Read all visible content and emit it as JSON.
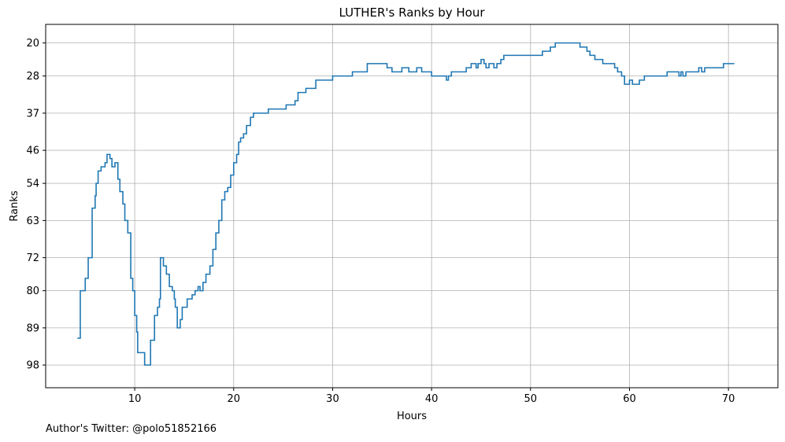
{
  "chart_data": {
    "type": "line",
    "title": "LUTHER's Ranks by Hour",
    "xlabel": "Hours",
    "ylabel": "Ranks",
    "xlim": [
      1,
      75
    ],
    "ylim": [
      103.5,
      15.5
    ],
    "y_inverted": true,
    "x_ticks": [
      10,
      20,
      30,
      40,
      50,
      60,
      70
    ],
    "y_ticks": [
      20,
      28,
      37,
      46,
      54,
      63,
      72,
      80,
      89,
      98
    ],
    "grid": true,
    "line_style": "step",
    "series": [
      {
        "color": "#1f77b4",
        "points": [
          [
            4.2,
            91.5
          ],
          [
            4.5,
            80
          ],
          [
            5.0,
            77
          ],
          [
            5.3,
            72
          ],
          [
            5.7,
            60
          ],
          [
            6.0,
            57
          ],
          [
            6.1,
            54
          ],
          [
            6.3,
            51
          ],
          [
            6.6,
            50
          ],
          [
            7.0,
            49
          ],
          [
            7.2,
            47
          ],
          [
            7.5,
            48
          ],
          [
            7.7,
            50
          ],
          [
            8.0,
            49
          ],
          [
            8.3,
            53
          ],
          [
            8.5,
            56
          ],
          [
            8.8,
            59
          ],
          [
            9.0,
            63
          ],
          [
            9.3,
            66
          ],
          [
            9.6,
            77
          ],
          [
            9.8,
            80
          ],
          [
            10.0,
            86
          ],
          [
            10.2,
            90
          ],
          [
            10.3,
            95
          ],
          [
            11.0,
            98
          ],
          [
            11.6,
            92
          ],
          [
            12.0,
            86
          ],
          [
            12.3,
            84
          ],
          [
            12.5,
            82
          ],
          [
            12.6,
            72
          ],
          [
            12.9,
            74
          ],
          [
            13.2,
            76
          ],
          [
            13.5,
            79
          ],
          [
            13.8,
            80
          ],
          [
            14.0,
            82
          ],
          [
            14.1,
            84
          ],
          [
            14.3,
            89
          ],
          [
            14.6,
            87
          ],
          [
            14.8,
            84
          ],
          [
            15.3,
            82
          ],
          [
            15.8,
            81
          ],
          [
            16.1,
            80
          ],
          [
            16.4,
            79
          ],
          [
            16.6,
            80
          ],
          [
            16.9,
            78
          ],
          [
            17.2,
            76
          ],
          [
            17.6,
            74
          ],
          [
            17.9,
            70
          ],
          [
            18.2,
            66
          ],
          [
            18.5,
            63
          ],
          [
            18.8,
            58
          ],
          [
            19.1,
            56
          ],
          [
            19.4,
            55
          ],
          [
            19.7,
            52
          ],
          [
            20.0,
            49
          ],
          [
            20.3,
            47
          ],
          [
            20.5,
            44
          ],
          [
            20.7,
            43
          ],
          [
            21.0,
            42
          ],
          [
            21.3,
            40
          ],
          [
            21.7,
            38
          ],
          [
            22.0,
            37
          ],
          [
            23.5,
            36
          ],
          [
            25.3,
            35
          ],
          [
            26.2,
            34
          ],
          [
            26.5,
            32
          ],
          [
            27.3,
            31
          ],
          [
            28.3,
            29
          ],
          [
            30.0,
            28
          ],
          [
            32.0,
            27
          ],
          [
            33.5,
            25
          ],
          [
            35.5,
            26
          ],
          [
            36.0,
            27
          ],
          [
            37.0,
            26
          ],
          [
            37.7,
            27
          ],
          [
            38.5,
            26
          ],
          [
            39.0,
            27
          ],
          [
            40.0,
            28
          ],
          [
            41.5,
            29
          ],
          [
            41.7,
            28
          ],
          [
            42.0,
            27
          ],
          [
            43.5,
            26
          ],
          [
            44.0,
            25
          ],
          [
            44.5,
            26
          ],
          [
            44.7,
            25
          ],
          [
            45.0,
            24
          ],
          [
            45.3,
            25
          ],
          [
            45.5,
            26
          ],
          [
            45.8,
            25
          ],
          [
            46.3,
            26
          ],
          [
            46.6,
            25
          ],
          [
            47.0,
            24
          ],
          [
            47.3,
            23
          ],
          [
            51.2,
            22
          ],
          [
            52.0,
            21
          ],
          [
            52.5,
            20
          ],
          [
            55.0,
            21
          ],
          [
            55.7,
            22
          ],
          [
            56.0,
            23
          ],
          [
            56.5,
            24
          ],
          [
            57.3,
            25
          ],
          [
            58.5,
            26
          ],
          [
            58.8,
            27
          ],
          [
            59.2,
            28
          ],
          [
            59.5,
            30
          ],
          [
            60.0,
            29
          ],
          [
            60.3,
            30
          ],
          [
            61.0,
            29
          ],
          [
            61.5,
            28
          ],
          [
            63.8,
            27
          ],
          [
            65.0,
            28
          ],
          [
            65.2,
            27
          ],
          [
            65.4,
            28
          ],
          [
            65.7,
            27
          ],
          [
            67.0,
            26
          ],
          [
            67.3,
            27
          ],
          [
            67.6,
            26
          ],
          [
            69.5,
            25
          ],
          [
            70.6,
            25
          ]
        ]
      }
    ]
  },
  "footer": {
    "text": "Author's Twitter: @polo51852166"
  }
}
